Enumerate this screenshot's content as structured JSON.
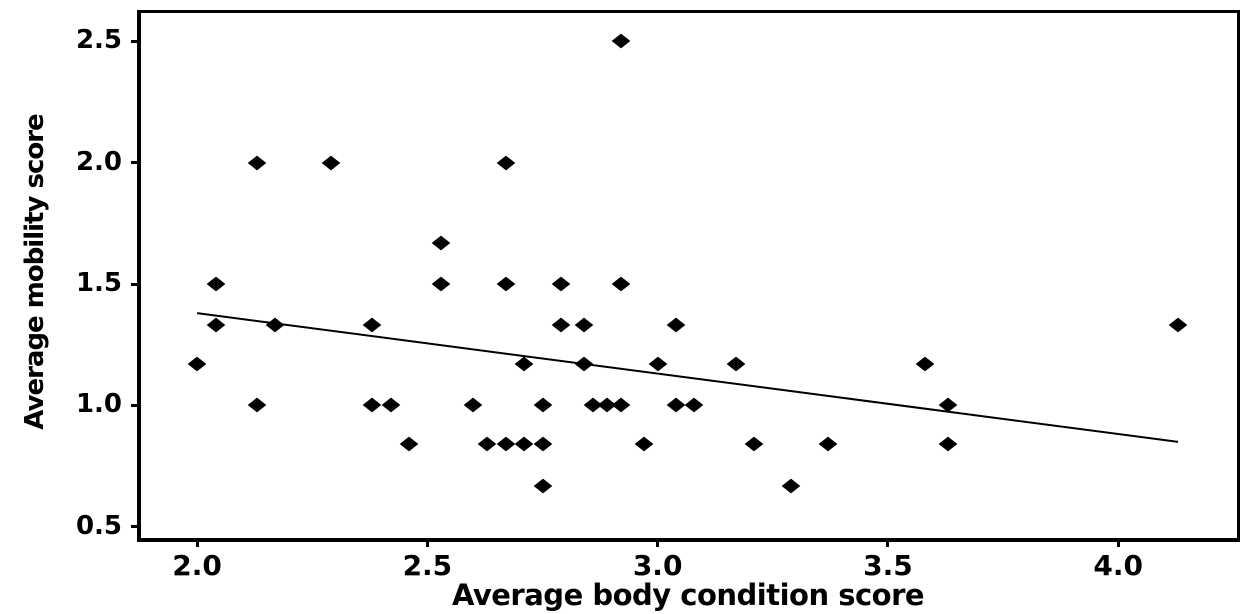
{
  "chart_data": {
    "type": "scatter",
    "title": "",
    "xlabel": "Average body condition score",
    "ylabel": "Average mobility score",
    "x_ticks": [
      2.0,
      2.5,
      3.0,
      3.5,
      4.0
    ],
    "x_tick_labels": [
      "2.0",
      "2.5",
      "3.0",
      "3.5",
      "4.0"
    ],
    "y_ticks": [
      0.5,
      1.0,
      1.5,
      2.0,
      2.5
    ],
    "y_tick_labels": [
      "0.5",
      "1.0",
      "1.5",
      "2.0",
      "2.5"
    ],
    "xlim": [
      1.876,
      4.258
    ],
    "ylim": [
      0.45,
      2.616
    ],
    "grid": false,
    "legend": "none",
    "marker": "diamond",
    "marker_color": "#000000",
    "background_color": "#ffffff",
    "points": [
      [
        2.92,
        2.5
      ],
      [
        2.13,
        2.0
      ],
      [
        2.29,
        2.0
      ],
      [
        2.67,
        2.0
      ],
      [
        2.53,
        1.67
      ],
      [
        2.04,
        1.5
      ],
      [
        2.53,
        1.5
      ],
      [
        2.67,
        1.5
      ],
      [
        2.79,
        1.5
      ],
      [
        2.92,
        1.5
      ],
      [
        2.04,
        1.33
      ],
      [
        2.17,
        1.33
      ],
      [
        2.38,
        1.33
      ],
      [
        2.79,
        1.33
      ],
      [
        2.84,
        1.33
      ],
      [
        3.04,
        1.33
      ],
      [
        4.13,
        1.33
      ],
      [
        2.0,
        1.17
      ],
      [
        2.71,
        1.17
      ],
      [
        2.84,
        1.17
      ],
      [
        3.0,
        1.17
      ],
      [
        3.17,
        1.17
      ],
      [
        3.58,
        1.17
      ],
      [
        2.13,
        1.0
      ],
      [
        2.38,
        1.0
      ],
      [
        2.42,
        1.0
      ],
      [
        2.6,
        1.0
      ],
      [
        2.75,
        1.0
      ],
      [
        2.86,
        1.0
      ],
      [
        2.89,
        1.0
      ],
      [
        2.92,
        1.0
      ],
      [
        3.04,
        1.0
      ],
      [
        3.08,
        1.0
      ],
      [
        3.63,
        1.0
      ],
      [
        2.46,
        0.84
      ],
      [
        2.63,
        0.84
      ],
      [
        2.67,
        0.84
      ],
      [
        2.71,
        0.84
      ],
      [
        2.75,
        0.84
      ],
      [
        2.97,
        0.84
      ],
      [
        3.21,
        0.84
      ],
      [
        3.37,
        0.84
      ],
      [
        3.63,
        0.84
      ],
      [
        2.75,
        0.67
      ],
      [
        3.29,
        0.67
      ]
    ],
    "trendline": {
      "x1": 2.0,
      "y1": 1.38,
      "x2": 4.13,
      "y2": 0.85,
      "color": "#000000"
    }
  }
}
